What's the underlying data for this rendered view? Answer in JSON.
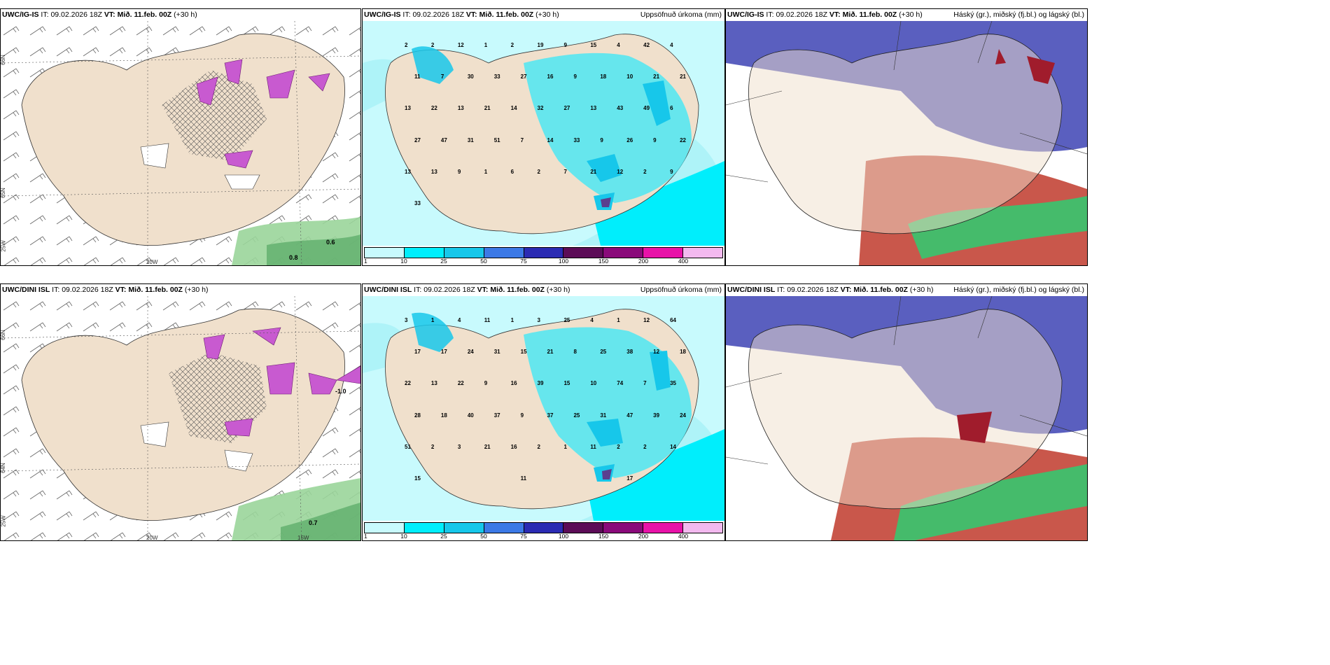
{
  "colors": {
    "land": "#f0e0cc",
    "sea_white": "#ffffff",
    "precip_light": "#aef3f8",
    "precip_mid": "#4ee6f2",
    "precip_strong": "#29c6e6",
    "precip_heavy": "#5b3e8f",
    "purple_icing": "#c85ad0",
    "green_shade": "#9ad59a",
    "cloud_high": "#5a5fbf",
    "cloud_mid": "#c0392b",
    "cloud_low": "#2ecc71"
  },
  "panels": {
    "r1c1": {
      "model": "UWC/IG-IS",
      "it_label": "IT:",
      "it": "09.02.2026 18Z",
      "vt_label": "VT: Mið. 11.feb. 00Z",
      "lead": "(+30 h)",
      "right_title": ""
    },
    "r1c2": {
      "model": "UWC/IG-IS",
      "it_label": "IT:",
      "it": "09.02.2026 18Z",
      "vt_label": "VT: Mið. 11.feb. 00Z",
      "lead": "(+30 h)",
      "right_title": "Uppsöfnuð úrkoma (mm)"
    },
    "r1c3": {
      "model": "UWC/IG-IS",
      "it_label": "IT:",
      "it": "09.02.2026 18Z",
      "vt_label": "VT: Mið. 11.feb. 00Z",
      "lead": "(+30 h)",
      "right_title": "Háský (gr.), miðský (fj.bl.) og lágský (bl.)"
    },
    "r2c1": {
      "model": "UWC/DINI ISL",
      "it_label": "IT:",
      "it": "09.02.2026 18Z",
      "vt_label": "VT: Mið. 11.feb. 00Z",
      "lead": "(+30 h)",
      "right_title": ""
    },
    "r2c2": {
      "model": "UWC/DINI ISL",
      "it_label": "IT:",
      "it": "09.02.2026 18Z",
      "vt_label": "VT: Mið. 11.feb. 00Z",
      "lead": "(+30 h)",
      "right_title": "Uppsöfnuð úrkoma (mm)"
    },
    "r2c3": {
      "model": "UWC/DINI ISL",
      "it_label": "IT:",
      "it": "09.02.2026 18Z",
      "vt_label": "VT: Mið. 11.feb. 00Z",
      "lead": "(+30 h)",
      "right_title": "Háský (gr.), miðský (fj.bl.) og lágský (bl.)"
    }
  },
  "axes": {
    "lat66": "66N",
    "lat64": "64N",
    "lat65": "65N",
    "lon20": "20W",
    "lon15": "15W",
    "lon25": "25W"
  },
  "labels_r1c1": {
    "a": "0.8",
    "b": "0.6"
  },
  "labels_r2c1": {
    "a": "-1.0",
    "b": "0.7"
  },
  "legend": {
    "ticks": [
      "1",
      "10",
      "25",
      "50",
      "75",
      "100",
      "150",
      "200",
      "400"
    ],
    "colors": [
      "#c8fafd",
      "#00eefc",
      "#17c7ea",
      "#3c79e6",
      "#2b2bb3",
      "#5c0c57",
      "#8a0a7a",
      "#e812a8",
      "#f3b9ef"
    ]
  },
  "precip_r1": [
    "2",
    "2",
    "4",
    "2",
    "19",
    "42",
    "12",
    "9",
    "4",
    "1",
    "15",
    "11",
    "27",
    "10",
    "7",
    "16",
    "21",
    "30",
    "9",
    "21",
    "33",
    "18",
    "13",
    "14",
    "43",
    "22",
    "32",
    "49",
    "13",
    "27",
    "6",
    "21",
    "13",
    "27",
    "7",
    "26",
    "47",
    "14",
    "9",
    "31",
    "33",
    "22",
    "51",
    "9",
    "13",
    "6",
    "12",
    "13",
    "2",
    "2",
    "9",
    "7",
    "9",
    "1",
    "21",
    "33"
  ],
  "precip_r2": [
    "3",
    "1",
    "1",
    "1",
    "3",
    "12",
    "4",
    "25",
    "64",
    "11",
    "4",
    "17",
    "15",
    "38",
    "17",
    "21",
    "12",
    "24",
    "8",
    "18",
    "31",
    "25",
    "22",
    "16",
    "74",
    "13",
    "39",
    "7",
    "22",
    "15",
    "35",
    "9",
    "10",
    "28",
    "9",
    "47",
    "18",
    "37",
    "39",
    "40",
    "25",
    "24",
    "37",
    "31",
    "51",
    "16",
    "2",
    "2",
    "2",
    "2",
    "3",
    "1",
    "14",
    "21",
    "11",
    "15",
    "11",
    "17"
  ]
}
